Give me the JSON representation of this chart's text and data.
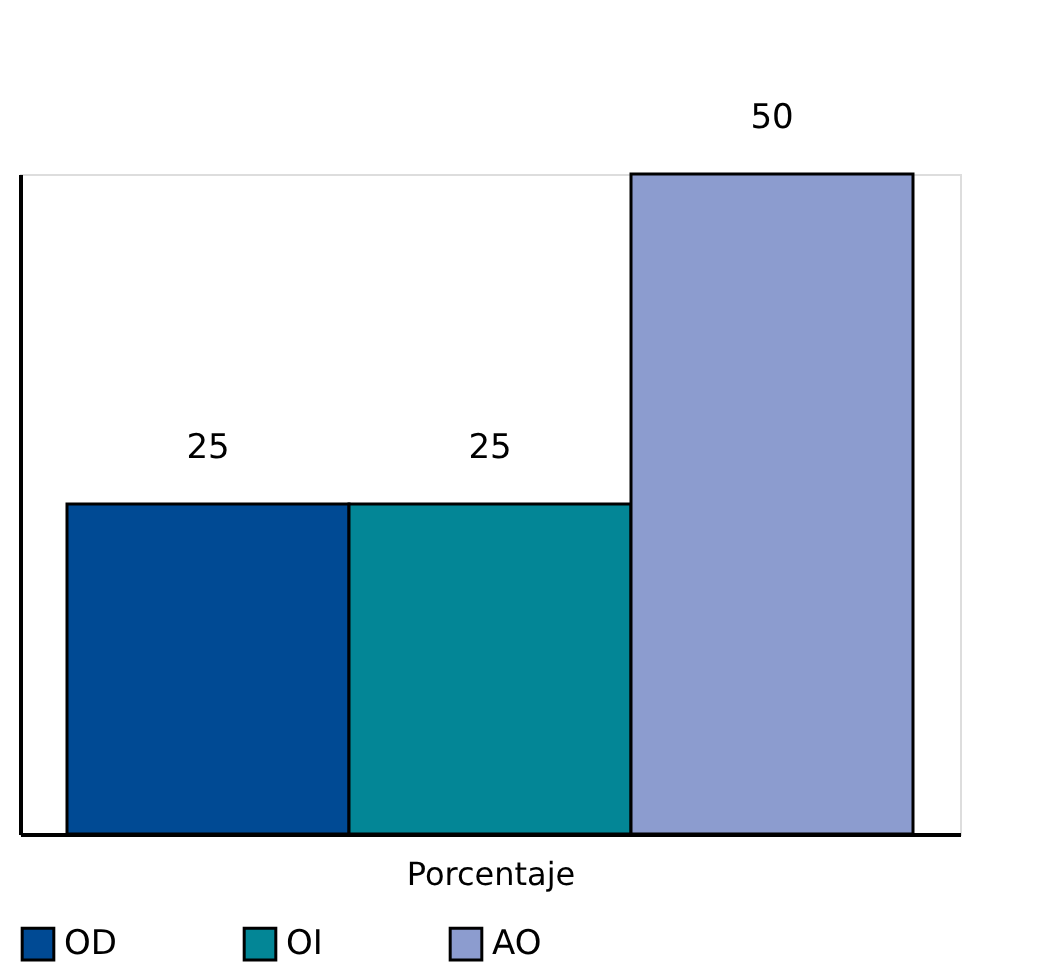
{
  "chart_data": {
    "type": "bar",
    "xlabel": "Porcentaje",
    "categories": [
      null
    ],
    "series": [
      {
        "name": "OD",
        "color": "#004a94",
        "values": [
          25
        ]
      },
      {
        "name": "OI",
        "color": "#038696",
        "values": [
          25
        ]
      },
      {
        "name": "AO",
        "color": "#8c9ccf",
        "values": [
          50
        ]
      }
    ],
    "data_labels": true,
    "legend": "bottom",
    "tick_labels": false,
    "grid": false
  }
}
